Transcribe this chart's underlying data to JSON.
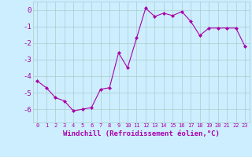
{
  "x": [
    0,
    1,
    2,
    3,
    4,
    5,
    6,
    7,
    8,
    9,
    10,
    11,
    12,
    13,
    14,
    15,
    16,
    17,
    18,
    19,
    20,
    21,
    22,
    23
  ],
  "y": [
    -4.3,
    -4.7,
    -5.3,
    -5.5,
    -6.1,
    -6.0,
    -5.9,
    -4.8,
    -4.7,
    -2.6,
    -3.5,
    -1.7,
    0.1,
    -0.4,
    -0.2,
    -0.35,
    -0.1,
    -0.7,
    -1.55,
    -1.1,
    -1.1,
    -1.1,
    -1.1,
    -2.2
  ],
  "line_color": "#aa00aa",
  "marker": "D",
  "marker_size": 2,
  "bg_color": "#cceeff",
  "grid_color": "#aacccc",
  "xlabel": "Windchill (Refroidissement éolien,°C)",
  "xlabel_color": "#aa00aa",
  "xlabel_fontsize": 6.5,
  "ylabel_ticks": [
    0,
    -1,
    -2,
    -3,
    -4,
    -5,
    -6
  ],
  "xlim": [
    -0.5,
    23.5
  ],
  "ylim": [
    -6.8,
    0.5
  ],
  "xtick_fontsize": 5.0,
  "ytick_fontsize": 6.5,
  "tick_color": "#aa00aa"
}
